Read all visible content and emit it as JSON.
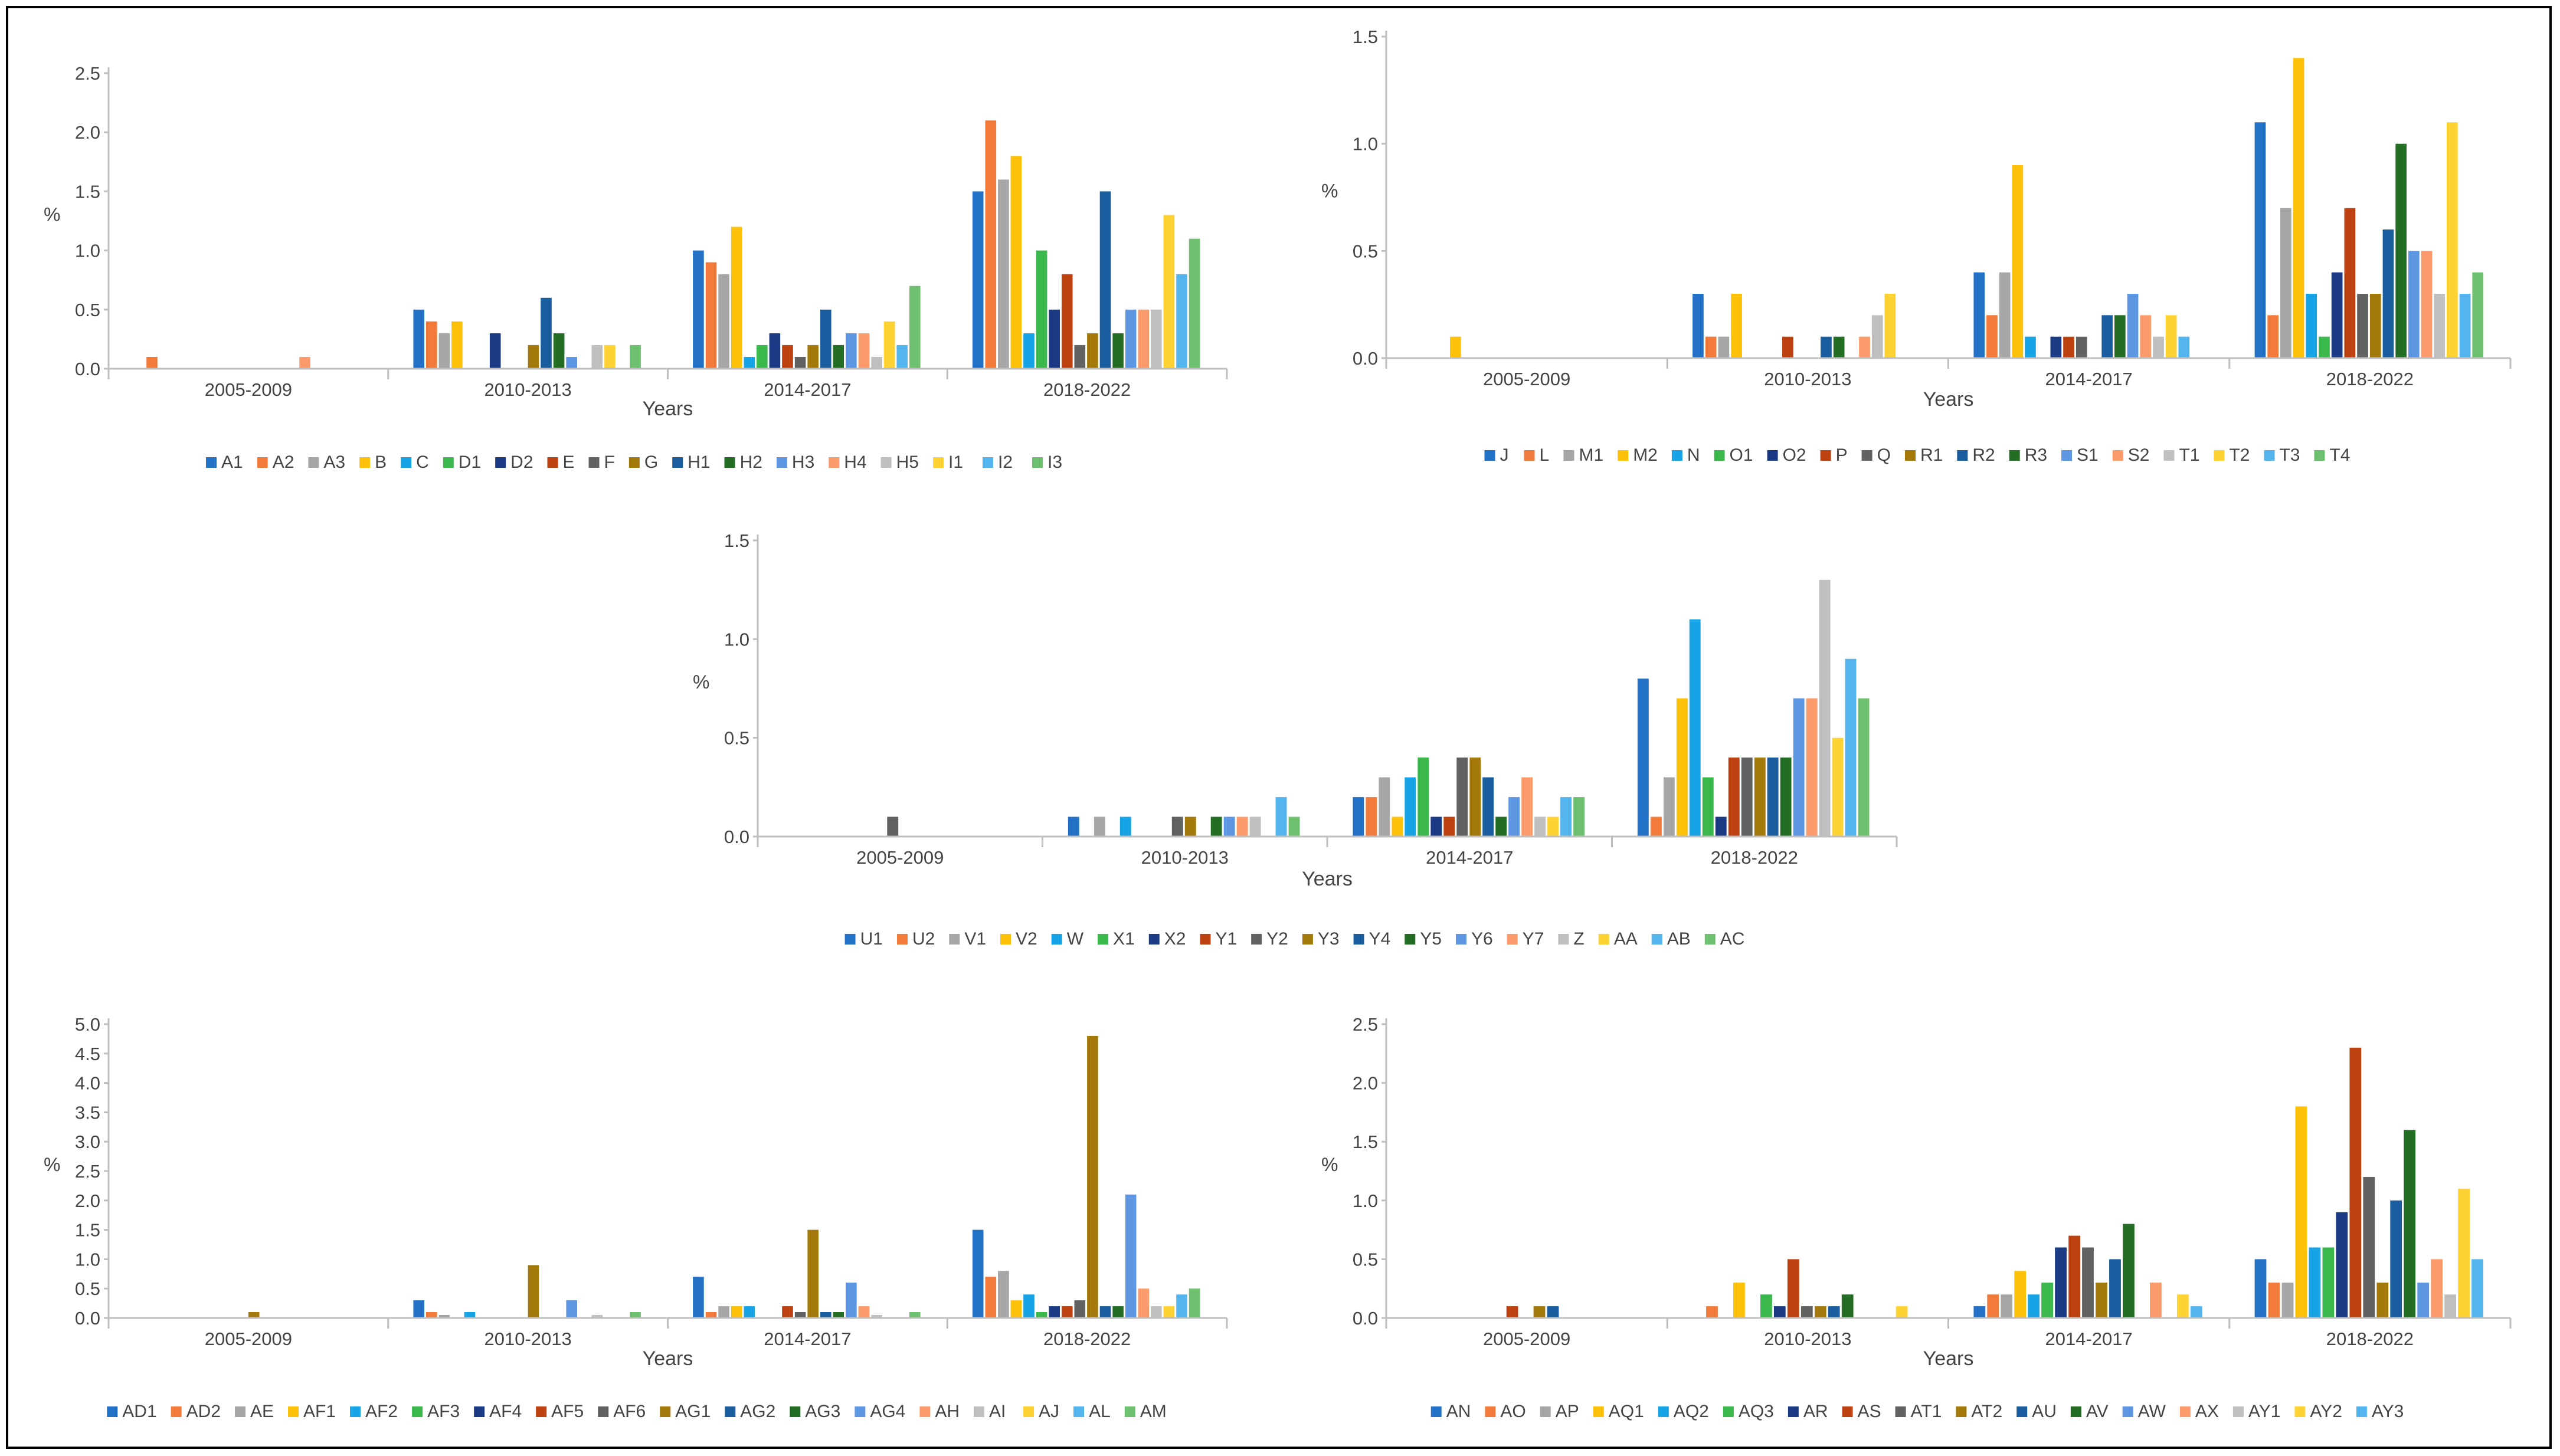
{
  "colors": {
    "palette": [
      "#2271c7",
      "#f27a3a",
      "#a6a6a6",
      "#fdc109",
      "#16a4e7",
      "#3bb84c",
      "#1b3a86",
      "#bd4111",
      "#626262",
      "#a3790b",
      "#1a5d9e",
      "#236d25",
      "#5d96e2",
      "#fb9b6c",
      "#bfbfbf",
      "#ffd233",
      "#53b4ee",
      "#6cc06e"
    ],
    "axis": "#bfbfbf",
    "text": "#444444",
    "frame": "#000000"
  },
  "chart_data": [
    {
      "type": "bar",
      "title": "",
      "xlabel": "Years",
      "ylabel": "%",
      "ylim": [
        0,
        2.5
      ],
      "yticks": [
        "0.0",
        "0.5",
        "1.0",
        "1.5",
        "2.0",
        "2.5"
      ],
      "categories": [
        "2005-2009",
        "2010-2013",
        "2014-2017",
        "2018-2022"
      ],
      "series": [
        {
          "name": "A1",
          "values": [
            0,
            0.5,
            1.0,
            1.5
          ]
        },
        {
          "name": "A2",
          "values": [
            0.1,
            0.4,
            0.9,
            2.1
          ]
        },
        {
          "name": "A3",
          "values": [
            0,
            0.3,
            0.8,
            1.6
          ]
        },
        {
          "name": "B",
          "values": [
            0,
            0.4,
            1.2,
            1.8
          ]
        },
        {
          "name": "C",
          "values": [
            0,
            0,
            0.1,
            0.3
          ]
        },
        {
          "name": "D1",
          "values": [
            0,
            0,
            0.2,
            1.0
          ]
        },
        {
          "name": "D2",
          "values": [
            0,
            0.3,
            0.3,
            0.5
          ]
        },
        {
          "name": "E",
          "values": [
            0,
            0,
            0.2,
            0.8
          ]
        },
        {
          "name": "F",
          "values": [
            0,
            0,
            0.1,
            0.2
          ]
        },
        {
          "name": "G",
          "values": [
            0,
            0.2,
            0.2,
            0.3
          ]
        },
        {
          "name": "H1",
          "values": [
            0,
            0.6,
            0.5,
            1.5
          ]
        },
        {
          "name": "H2",
          "values": [
            0,
            0.3,
            0.2,
            0.3
          ]
        },
        {
          "name": "H3",
          "values": [
            0,
            0.1,
            0.3,
            0.5
          ]
        },
        {
          "name": "H4",
          "values": [
            0.1,
            0,
            0.3,
            0.5
          ]
        },
        {
          "name": "H5",
          "values": [
            0,
            0.2,
            0.1,
            0.5
          ]
        },
        {
          "name": "I1",
          "values": [
            0,
            0.2,
            0.4,
            1.3
          ]
        },
        {
          "name": "I2",
          "values": [
            0,
            0,
            0.2,
            0.8
          ]
        },
        {
          "name": "I3",
          "values": [
            0,
            0.2,
            0.7,
            1.1
          ]
        }
      ]
    },
    {
      "type": "bar",
      "title": "",
      "xlabel": "Years",
      "ylabel": "%",
      "ylim": [
        0,
        1.5
      ],
      "yticks": [
        "0.0",
        "0.5",
        "1.0",
        "1.5"
      ],
      "categories": [
        "2005-2009",
        "2010-2013",
        "2014-2017",
        "2018-2022"
      ],
      "series": [
        {
          "name": "J",
          "values": [
            0,
            0.3,
            0.4,
            1.1
          ]
        },
        {
          "name": "L",
          "values": [
            0,
            0.1,
            0.2,
            0.2
          ]
        },
        {
          "name": "M1",
          "values": [
            0,
            0.1,
            0.4,
            0.7
          ]
        },
        {
          "name": "M2",
          "values": [
            0.1,
            0.3,
            0.9,
            1.4
          ]
        },
        {
          "name": "N",
          "values": [
            0,
            0,
            0.1,
            0.3
          ]
        },
        {
          "name": "O1",
          "values": [
            0,
            0,
            0,
            0.1
          ]
        },
        {
          "name": "O2",
          "values": [
            0,
            0,
            0.1,
            0.4
          ]
        },
        {
          "name": "P",
          "values": [
            0,
            0.1,
            0.1,
            0.7
          ]
        },
        {
          "name": "Q",
          "values": [
            0,
            0,
            0.1,
            0.3
          ]
        },
        {
          "name": "R1",
          "values": [
            0,
            0,
            0,
            0.3
          ]
        },
        {
          "name": "R2",
          "values": [
            0,
            0.1,
            0.2,
            0.6
          ]
        },
        {
          "name": "R3",
          "values": [
            0,
            0.1,
            0.2,
            1.0
          ]
        },
        {
          "name": "S1",
          "values": [
            0,
            0,
            0.3,
            0.5
          ]
        },
        {
          "name": "S2",
          "values": [
            0,
            0.1,
            0.2,
            0.5
          ]
        },
        {
          "name": "T1",
          "values": [
            0,
            0.2,
            0.1,
            0.3
          ]
        },
        {
          "name": "T2",
          "values": [
            0,
            0.3,
            0.2,
            1.1
          ]
        },
        {
          "name": "T3",
          "values": [
            0,
            0,
            0.1,
            0.3
          ]
        },
        {
          "name": "T4",
          "values": [
            0,
            0,
            0,
            0.4
          ]
        }
      ]
    },
    {
      "type": "bar",
      "title": "",
      "xlabel": "Years",
      "ylabel": "%",
      "ylim": [
        0,
        1.5
      ],
      "yticks": [
        "0.0",
        "0.5",
        "1.0",
        "1.5"
      ],
      "categories": [
        "2005-2009",
        "2010-2013",
        "2014-2017",
        "2018-2022"
      ],
      "series": [
        {
          "name": "U1",
          "values": [
            0,
            0.1,
            0.2,
            0.8
          ]
        },
        {
          "name": "U2",
          "values": [
            0,
            0,
            0.2,
            0.1
          ]
        },
        {
          "name": "V1",
          "values": [
            0,
            0.1,
            0.3,
            0.3
          ]
        },
        {
          "name": "V2",
          "values": [
            0,
            0,
            0.1,
            0.7
          ]
        },
        {
          "name": "W",
          "values": [
            0,
            0.1,
            0.3,
            1.1
          ]
        },
        {
          "name": "X1",
          "values": [
            0,
            0,
            0.4,
            0.3
          ]
        },
        {
          "name": "X2",
          "values": [
            0,
            0,
            0.1,
            0.1
          ]
        },
        {
          "name": "Y1",
          "values": [
            0,
            0,
            0.1,
            0.4
          ]
        },
        {
          "name": "Y2",
          "values": [
            0.1,
            0.1,
            0.4,
            0.4
          ]
        },
        {
          "name": "Y3",
          "values": [
            0,
            0.1,
            0.4,
            0.4
          ]
        },
        {
          "name": "Y4",
          "values": [
            0,
            0,
            0.3,
            0.4
          ]
        },
        {
          "name": "Y5",
          "values": [
            0,
            0.1,
            0.1,
            0.4
          ]
        },
        {
          "name": "Y6",
          "values": [
            0,
            0.1,
            0.2,
            0.7
          ]
        },
        {
          "name": "Y7",
          "values": [
            0,
            0.1,
            0.3,
            0.7
          ]
        },
        {
          "name": "Z",
          "values": [
            0,
            0.1,
            0.1,
            1.3
          ]
        },
        {
          "name": "AA",
          "values": [
            0,
            0,
            0.1,
            0.5
          ]
        },
        {
          "name": "AB",
          "values": [
            0,
            0.2,
            0.2,
            0.9
          ]
        },
        {
          "name": "AC",
          "values": [
            0,
            0.1,
            0.2,
            0.7
          ]
        }
      ]
    },
    {
      "type": "bar",
      "title": "",
      "xlabel": "Years",
      "ylabel": "%",
      "ylim": [
        0,
        5.0
      ],
      "yticks": [
        "0.0",
        "0.5",
        "1.0",
        "1.5",
        "2.0",
        "2.5",
        "3.0",
        "3.5",
        "4.0",
        "4.5",
        "5.0"
      ],
      "categories": [
        "2005-2009",
        "2010-2013",
        "2014-2017",
        "2018-2022"
      ],
      "series": [
        {
          "name": "AD1",
          "values": [
            0,
            0.3,
            0.7,
            1.5
          ]
        },
        {
          "name": "AD2",
          "values": [
            0,
            0.1,
            0.1,
            0.7
          ]
        },
        {
          "name": "AE",
          "values": [
            0,
            0.05,
            0.2,
            0.8
          ]
        },
        {
          "name": "AF1",
          "values": [
            0,
            0,
            0.2,
            0.3
          ]
        },
        {
          "name": "AF2",
          "values": [
            0,
            0.1,
            0.2,
            0.4
          ]
        },
        {
          "name": "AF3",
          "values": [
            0,
            0,
            0,
            0.1
          ]
        },
        {
          "name": "AF4",
          "values": [
            0,
            0,
            0,
            0.2
          ]
        },
        {
          "name": "AF5",
          "values": [
            0,
            0,
            0.2,
            0.2
          ]
        },
        {
          "name": "AF6",
          "values": [
            0,
            0,
            0.1,
            0.3
          ]
        },
        {
          "name": "AG1",
          "values": [
            0.1,
            0.9,
            1.5,
            4.8
          ]
        },
        {
          "name": "AG2",
          "values": [
            0,
            0,
            0.1,
            0.2
          ]
        },
        {
          "name": "AG3",
          "values": [
            0,
            0,
            0.1,
            0.2
          ]
        },
        {
          "name": "AG4",
          "values": [
            0,
            0.3,
            0.6,
            2.1
          ]
        },
        {
          "name": "AH",
          "values": [
            0,
            0,
            0.2,
            0.5
          ]
        },
        {
          "name": "AI",
          "values": [
            0,
            0.05,
            0.05,
            0.2
          ]
        },
        {
          "name": "AJ",
          "values": [
            0,
            0,
            0,
            0.2
          ]
        },
        {
          "name": "AL",
          "values": [
            0,
            0,
            0,
            0.4
          ]
        },
        {
          "name": "AM",
          "values": [
            0,
            0.1,
            0.1,
            0.5
          ]
        }
      ]
    },
    {
      "type": "bar",
      "title": "",
      "xlabel": "Years",
      "ylabel": "%",
      "ylim": [
        0,
        2.5
      ],
      "yticks": [
        "0.0",
        "0.5",
        "1.0",
        "1.5",
        "2.0",
        "2.5"
      ],
      "categories": [
        "2005-2009",
        "2010-2013",
        "2014-2017",
        "2018-2022"
      ],
      "series": [
        {
          "name": "AN",
          "values": [
            0,
            0,
            0.1,
            0.5
          ]
        },
        {
          "name": "AO",
          "values": [
            0,
            0.1,
            0.2,
            0.3
          ]
        },
        {
          "name": "AP",
          "values": [
            0,
            0,
            0.2,
            0.3
          ]
        },
        {
          "name": "AQ1",
          "values": [
            0,
            0.3,
            0.4,
            1.8
          ]
        },
        {
          "name": "AQ2",
          "values": [
            0,
            0,
            0.2,
            0.6
          ]
        },
        {
          "name": "AQ3",
          "values": [
            0,
            0.2,
            0.3,
            0.6
          ]
        },
        {
          "name": "AR",
          "values": [
            0,
            0.1,
            0.6,
            0.9
          ]
        },
        {
          "name": "AS",
          "values": [
            0.1,
            0.5,
            0.7,
            2.3
          ]
        },
        {
          "name": "AT1",
          "values": [
            0,
            0.1,
            0.6,
            1.2
          ]
        },
        {
          "name": "AT2",
          "values": [
            0.1,
            0.1,
            0.3,
            0.3
          ]
        },
        {
          "name": "AU",
          "values": [
            0.1,
            0.1,
            0.5,
            1.0
          ]
        },
        {
          "name": "AV",
          "values": [
            0,
            0.2,
            0.8,
            1.6
          ]
        },
        {
          "name": "AW",
          "values": [
            0,
            0,
            0,
            0.3
          ]
        },
        {
          "name": "AX",
          "values": [
            0,
            0,
            0.3,
            0.5
          ]
        },
        {
          "name": "AY1",
          "values": [
            0,
            0,
            0,
            0.2
          ]
        },
        {
          "name": "AY2",
          "values": [
            0,
            0.1,
            0.2,
            1.1
          ]
        },
        {
          "name": "AY3",
          "values": [
            0,
            0,
            0.1,
            0.5
          ]
        }
      ]
    }
  ]
}
